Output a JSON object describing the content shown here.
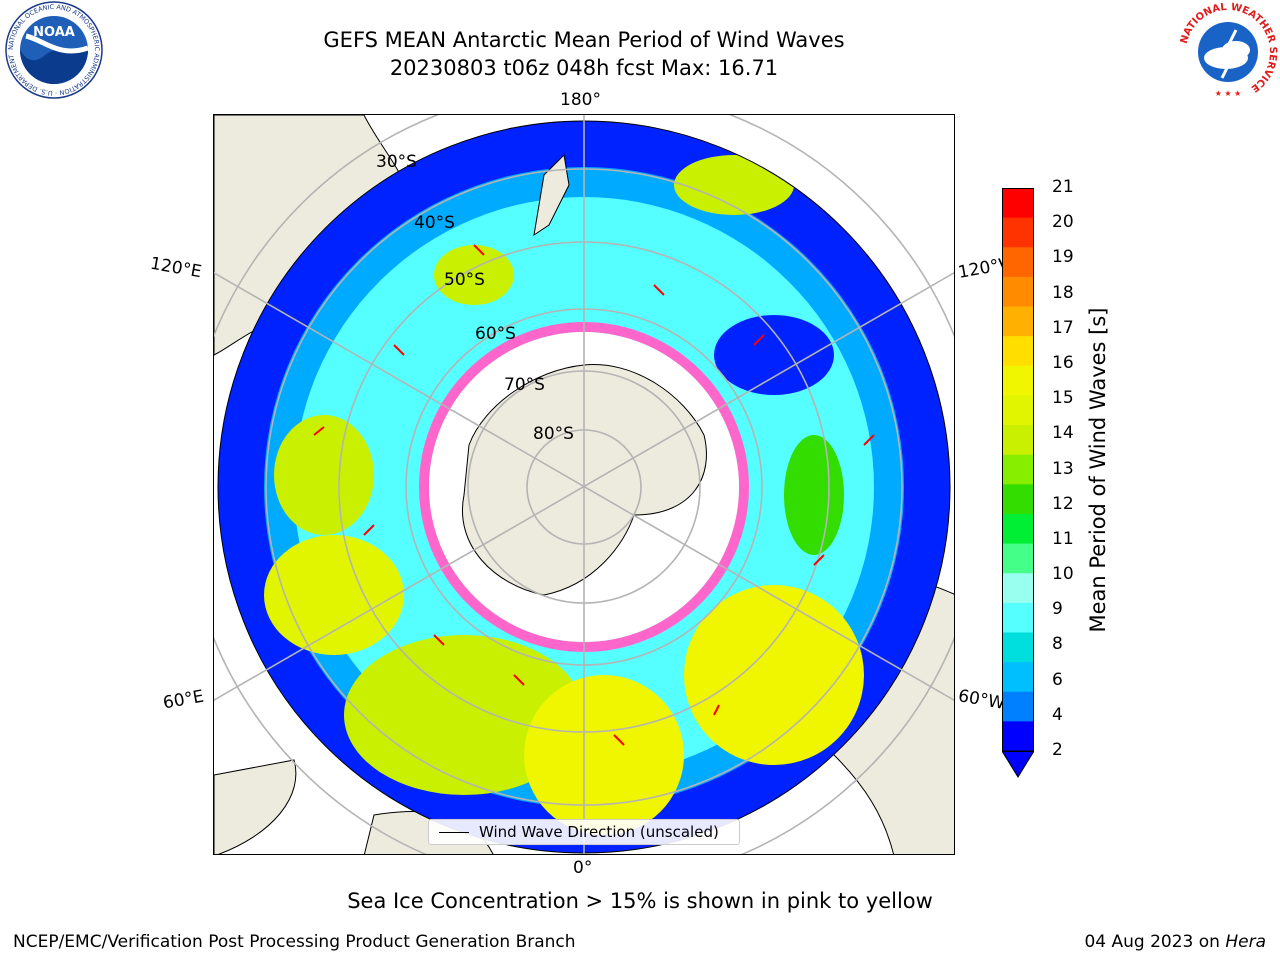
{
  "title": {
    "line1": "GEFS MEAN Antarctic Mean Period of Wind Waves",
    "line2": "20230803 t06z 048h fcst   Max: 16.71"
  },
  "logos": {
    "left": {
      "text": "NOAA",
      "ring_text": "NATIONAL OCEANIC AND ATMOSPHERIC ADMINISTRATION · U.S. DEPARTMENT OF COMMERCE"
    },
    "right": {
      "ring_text": "NATIONAL WEATHER SERVICE"
    }
  },
  "map": {
    "projection": "south-polar-stereographic",
    "lon_labels": [
      "180°",
      "120°E",
      "120°W",
      "60°E",
      "60°W",
      "0°"
    ],
    "lat_labels": [
      "30°S",
      "40°S",
      "50°S",
      "60°S",
      "70°S",
      "80°S"
    ],
    "legend_label": "Wind Wave Direction (unscaled)"
  },
  "colorbar": {
    "label": "Mean Period of Wind Waves [s]",
    "ticks": [
      "21",
      "20",
      "19",
      "18",
      "17",
      "16",
      "15",
      "14",
      "13",
      "12",
      "11",
      "10",
      "9",
      "8",
      "6",
      "4",
      "2"
    ],
    "colors": [
      "#ff0000",
      "#ff3300",
      "#ff6600",
      "#ff8c00",
      "#ffb000",
      "#ffde00",
      "#f0f500",
      "#e2f500",
      "#c8f000",
      "#88ee00",
      "#33dd00",
      "#00ee33",
      "#44ff88",
      "#99ffee",
      "#55ffff",
      "#00dddd",
      "#00bfff",
      "#007fff",
      "#0000ff"
    ],
    "extend": "min"
  },
  "footnote": "Sea Ice Concentration > 15% is shown in pink to yellow",
  "credit": "NCEP/EMC/Verification Post Processing Product Generation Branch",
  "date": {
    "text": "04 Aug 2023 on ",
    "host": "Hera"
  }
}
